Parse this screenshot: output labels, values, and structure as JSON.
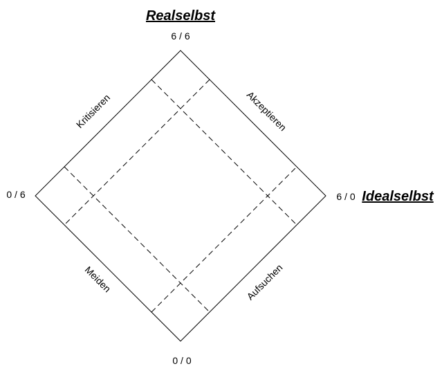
{
  "titles": {
    "top": "Realselbst",
    "right": "Idealselbst"
  },
  "corners": {
    "top": "6 / 6",
    "left": "0 / 6",
    "right": "6 / 0",
    "bottom": "0 / 0"
  },
  "sides": {
    "top_left": "Kritisieren",
    "top_right": "Akzeptieren",
    "bottom_left": "Meiden",
    "bottom_right": "Aufsuchen"
  }
}
